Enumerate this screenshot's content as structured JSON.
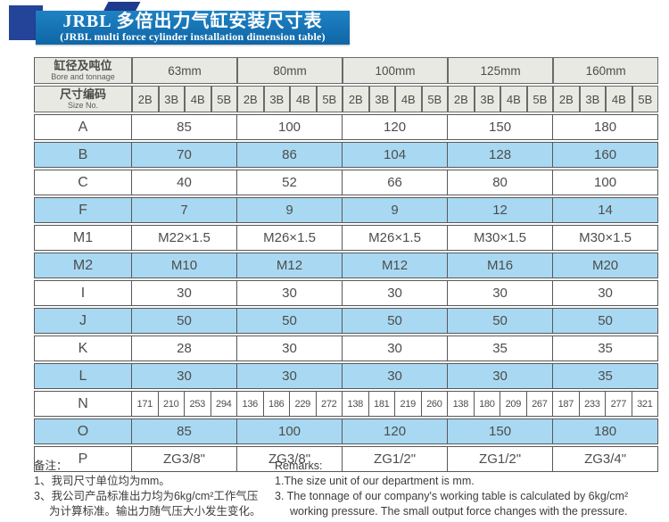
{
  "banner": {
    "title_zh": "JRBL 多倍出力气缸安装尺寸表",
    "title_en": "(JRBL multi force cylinder installation dimension table)"
  },
  "colors": {
    "banner_blue": "#1573b9",
    "navy": "#24449a",
    "row_shade_blue": "#a9d9f2",
    "header_gray": "#e8e9e3",
    "border_gray": "#58585a",
    "cell_text": "#4d4d4d"
  },
  "table": {
    "corner": {
      "bore_zh": "缸径及吨位",
      "bore_en": "Bore and tonnage",
      "size_zh": "尺寸编码",
      "size_en": "Size No."
    },
    "bores": [
      "63mm",
      "80mm",
      "100mm",
      "125mm",
      "160mm"
    ],
    "size_codes": [
      "2B",
      "3B",
      "4B",
      "5B"
    ],
    "rows": [
      {
        "label": "A",
        "shade": false,
        "merged": [
          "85",
          "100",
          "120",
          "150",
          "180"
        ]
      },
      {
        "label": "B",
        "shade": true,
        "merged": [
          "70",
          "86",
          "104",
          "128",
          "160"
        ]
      },
      {
        "label": "C",
        "shade": false,
        "merged": [
          "40",
          "52",
          "66",
          "80",
          "100"
        ]
      },
      {
        "label": "F",
        "shade": true,
        "merged": [
          "7",
          "9",
          "9",
          "12",
          "14"
        ]
      },
      {
        "label": "M1",
        "shade": false,
        "merged": [
          "M22×1.5",
          "M26×1.5",
          "M26×1.5",
          "M30×1.5",
          "M30×1.5"
        ]
      },
      {
        "label": "M2",
        "shade": true,
        "merged": [
          "M10",
          "M12",
          "M12",
          "M16",
          "M20"
        ]
      },
      {
        "label": "I",
        "shade": false,
        "merged": [
          "30",
          "30",
          "30",
          "30",
          "30"
        ]
      },
      {
        "label": "J",
        "shade": true,
        "merged": [
          "50",
          "50",
          "50",
          "50",
          "50"
        ]
      },
      {
        "label": "K",
        "shade": false,
        "merged": [
          "28",
          "30",
          "30",
          "35",
          "35"
        ]
      },
      {
        "label": "L",
        "shade": true,
        "merged": [
          "30",
          "30",
          "30",
          "30",
          "35"
        ]
      },
      {
        "label": "N",
        "shade": false,
        "per_code": [
          [
            "171",
            "210",
            "253",
            "294"
          ],
          [
            "136",
            "186",
            "229",
            "272"
          ],
          [
            "138",
            "181",
            "219",
            "260"
          ],
          [
            "138",
            "180",
            "209",
            "267"
          ],
          [
            "187",
            "233",
            "277",
            "321"
          ]
        ]
      },
      {
        "label": "O",
        "shade": true,
        "merged": [
          "85",
          "100",
          "120",
          "150",
          "180"
        ]
      },
      {
        "label": "P",
        "shade": false,
        "merged": [
          "ZG3/8\"",
          "ZG3/8\"",
          "ZG1/2\"",
          "ZG1/2\"",
          "ZG3/4\""
        ]
      }
    ]
  },
  "notes_zh": {
    "heading": "备注：",
    "lines": [
      {
        "text": "1、我司尺寸单位均为mm。",
        "indent": false
      },
      {
        "text": "3、我公司产品标准出力均为6kg/cm²工作气压",
        "indent": false
      },
      {
        "text": "为计算标准。输出力随气压大小发生变化。",
        "indent": true
      }
    ]
  },
  "notes_en": {
    "heading": "Remarks:",
    "lines": [
      {
        "text": "1.The size unit of our department is mm.",
        "indent": false
      },
      {
        "text": "3. The tonnage of our company's working table is calculated by 6kg/cm²",
        "indent": false
      },
      {
        "text": "working pressure. The small output force changes with the pressure.",
        "indent": true
      }
    ]
  }
}
